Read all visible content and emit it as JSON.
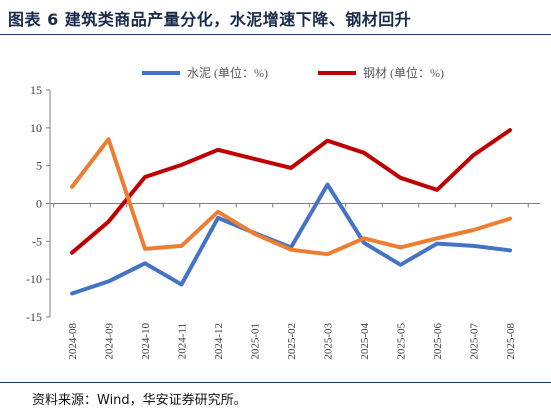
{
  "figure_title": "图表 6  建筑类商品产量分化，水泥增速下降、钢材回升",
  "source_note": "资料来源：Wind，华安证券研究所。",
  "chart_data": {
    "type": "line",
    "title": "",
    "xlabel": "",
    "ylabel": "",
    "ylim": [
      -15,
      15
    ],
    "yticks": [
      15,
      10,
      5,
      0,
      -5,
      -10,
      -15
    ],
    "grid": false,
    "legend_position": "top",
    "categories": [
      "2024-08",
      "2024-09",
      "2024-10",
      "2024-11",
      "2024-12",
      "2025-01",
      "2025-02",
      "2025-03",
      "2025-04",
      "2025-05",
      "2025-06",
      "2025-07",
      "2025-08"
    ],
    "series": [
      {
        "name": "水泥 (单位：%)",
        "color": "#4472c4",
        "values": [
          -11.9,
          -10.3,
          -7.9,
          -10.7,
          -1.9,
          -3.9,
          -5.8,
          2.5,
          -5.2,
          -8.1,
          -5.3,
          -5.6,
          -6.2
        ]
      },
      {
        "name": "钢材 (单位：%)",
        "color": "#c00000",
        "values": [
          -6.5,
          -2.4,
          3.5,
          5.1,
          7.1,
          5.9,
          4.7,
          8.3,
          6.7,
          3.4,
          1.8,
          6.4,
          9.7
        ]
      },
      {
        "name": "",
        "color": "#ed7d31",
        "values": [
          2.2,
          8.5,
          -6.0,
          -5.6,
          -1.1,
          -4.0,
          -6.1,
          -6.7,
          -4.6,
          -5.8,
          -4.6,
          -3.5,
          -2.0
        ]
      }
    ]
  }
}
